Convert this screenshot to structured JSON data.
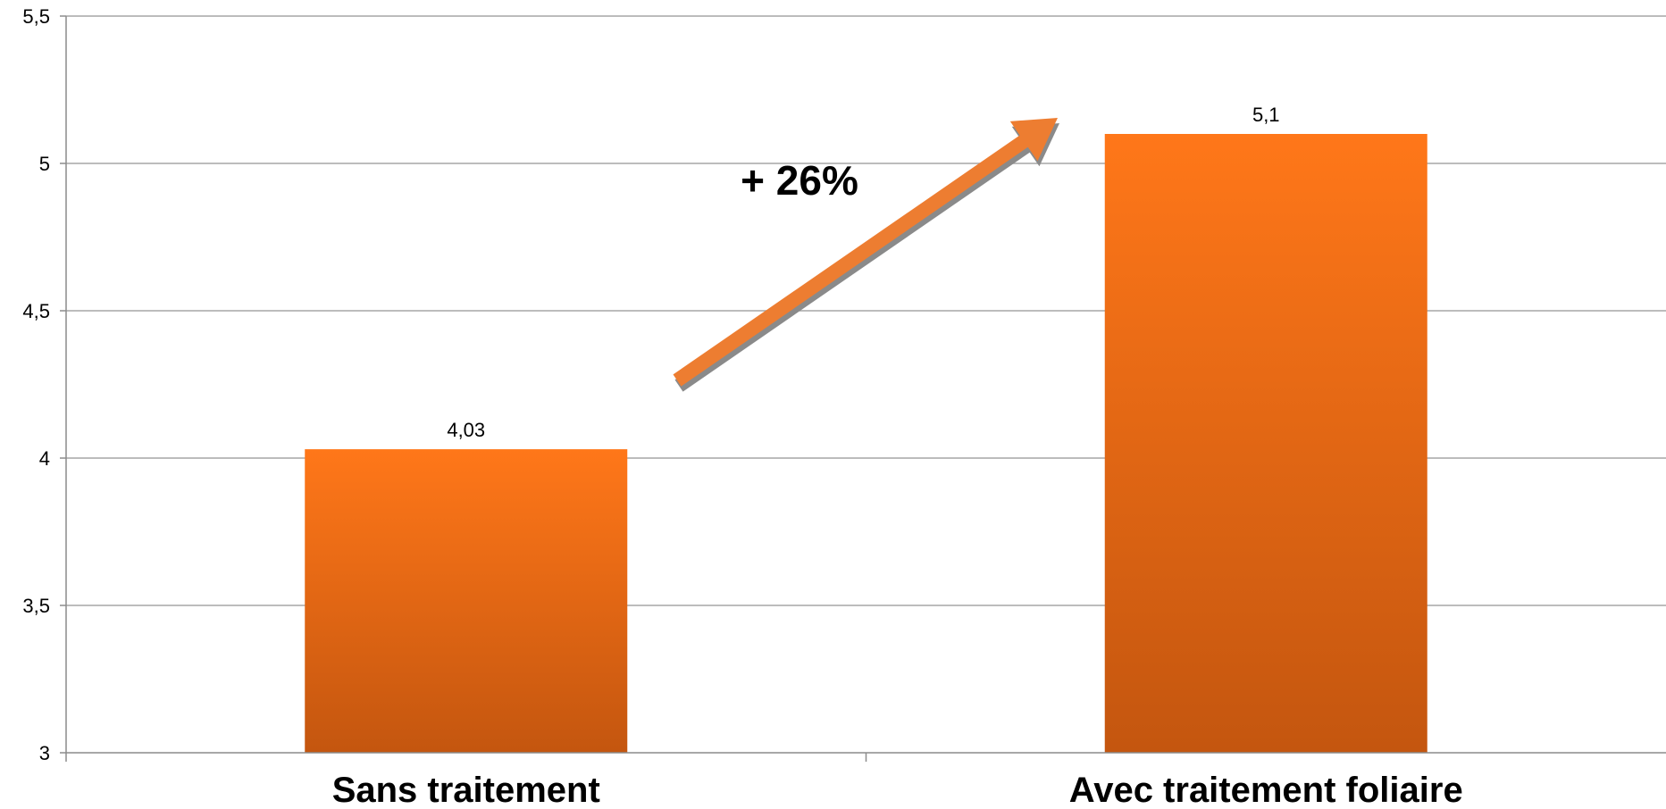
{
  "chart_data": {
    "type": "bar",
    "categories": [
      "Sans traitement",
      "Avec traitement foliaire"
    ],
    "values": [
      4.03,
      5.1
    ],
    "value_labels": [
      "4,03",
      "5,1"
    ],
    "ylim": [
      3,
      5.5
    ],
    "yticks": [
      3,
      3.5,
      4,
      4.5,
      5,
      5.5
    ],
    "ytick_labels": [
      "3",
      "3,5",
      "4",
      "4,5",
      "5",
      "5,5"
    ],
    "grid": true,
    "legend": "none",
    "annotation": {
      "text": "+ 26%",
      "arrow": "from first bar up to second bar"
    },
    "colors": {
      "bar_top": "#ff7719",
      "bar_bottom": "#c4560f",
      "arrow": "#ed7d31",
      "arrow_shadow": "#8a8a8a",
      "grid": "#a6a6a6",
      "axis": "#8c8c8c"
    }
  }
}
